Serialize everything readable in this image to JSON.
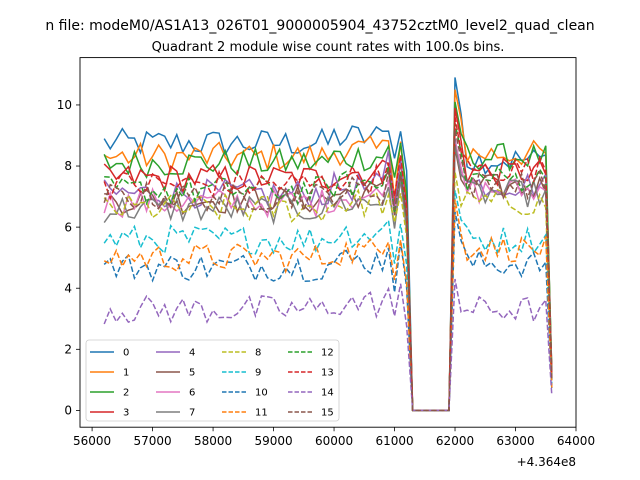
{
  "figure": {
    "suptitle": "n file: modeM0/AS1A13_026T01_9000005904_43752cztM0_level2_quad_clean"
  },
  "chart_data": {
    "type": "line",
    "title": "Quadrant 2 module wise count rates with 100.0s bins.",
    "xlabel": "",
    "ylabel": "",
    "xlim": [
      55800,
      64000
    ],
    "ylim": [
      -0.55,
      11.55
    ],
    "x_offset_label": "+4.364e8",
    "xticks": [
      56000,
      57000,
      58000,
      59000,
      60000,
      61000,
      62000,
      63000,
      64000
    ],
    "xtick_labels": [
      "56000",
      "57000",
      "58000",
      "59000",
      "60000",
      "61000",
      "62000",
      "63000",
      "64000"
    ],
    "yticks": [
      0,
      2,
      4,
      6,
      8,
      10
    ],
    "ytick_labels": [
      "0",
      "2",
      "4",
      "6",
      "8",
      "10"
    ],
    "grid": false,
    "legend": {
      "placement": "lower-left",
      "columns": 4
    },
    "x": [
      56200,
      56300,
      56400,
      56500,
      56600,
      56700,
      56800,
      56900,
      57000,
      57100,
      57200,
      57300,
      57400,
      57500,
      57600,
      57700,
      57800,
      57900,
      58000,
      58100,
      58200,
      58300,
      58400,
      58500,
      58600,
      58700,
      58800,
      58900,
      59000,
      59100,
      59200,
      59300,
      59400,
      59500,
      59600,
      59700,
      59800,
      59900,
      60000,
      60100,
      60200,
      60300,
      60400,
      60500,
      60600,
      60700,
      60800,
      60900,
      61000,
      61100,
      61200,
      61300,
      61400,
      61500,
      61600,
      61700,
      61800,
      61900,
      62000,
      62100,
      62200,
      62300,
      62400,
      62500,
      62600,
      62700,
      62800,
      62900,
      63000,
      63100,
      63200,
      63300,
      63400,
      63500,
      63600
    ],
    "gap_values": [
      0,
      0,
      0,
      0,
      0,
      0
    ],
    "series": [
      {
        "name": "0",
        "color": "#1f77b4",
        "dash": false,
        "base": 8.75,
        "dip": 8.2,
        "p1": 9.3,
        "peak": 10.9,
        "post": 8.2
      },
      {
        "name": "1",
        "color": "#ff7f0e",
        "dash": false,
        "base": 8.3,
        "dip": 7.2,
        "p1": 8.9,
        "peak": 10.5,
        "post": 8.4
      },
      {
        "name": "2",
        "color": "#2ca02c",
        "dash": false,
        "base": 8.1,
        "dip": 7.5,
        "p1": 8.7,
        "peak": 10.1,
        "post": 8.3
      },
      {
        "name": "3",
        "color": "#d62728",
        "dash": false,
        "base": 7.6,
        "dip": 7.0,
        "p1": 8.2,
        "peak": 9.9,
        "post": 7.8
      },
      {
        "name": "4",
        "color": "#9467bd",
        "dash": false,
        "base": 7.1,
        "dip": 6.6,
        "p1": 8.4,
        "peak": 8.9,
        "post": 7.4
      },
      {
        "name": "5",
        "color": "#8c564b",
        "dash": false,
        "base": 6.9,
        "dip": 6.4,
        "p1": 7.9,
        "peak": 8.6,
        "post": 7.3
      },
      {
        "name": "6",
        "color": "#e377c2",
        "dash": false,
        "base": 6.8,
        "dip": 6.3,
        "p1": 7.7,
        "peak": 8.8,
        "post": 7.2
      },
      {
        "name": "7",
        "color": "#7f7f7f",
        "dash": false,
        "base": 6.6,
        "dip": 6.1,
        "p1": 7.4,
        "peak": 8.7,
        "post": 7.1
      },
      {
        "name": "8",
        "color": "#bcbd22",
        "dash": true,
        "base": 6.6,
        "dip": 5.9,
        "p1": 7.0,
        "peak": 7.8,
        "post": 6.8
      },
      {
        "name": "9",
        "color": "#17becf",
        "dash": true,
        "base": 5.6,
        "dip": 5.0,
        "p1": 6.2,
        "peak": 7.2,
        "post": 5.6
      },
      {
        "name": "10",
        "color": "#1f77b4",
        "dash": true,
        "base": 4.7,
        "dip": 4.1,
        "p1": 5.4,
        "peak": 6.5,
        "post": 4.8
      },
      {
        "name": "11",
        "color": "#ff7f0e",
        "dash": true,
        "base": 5.0,
        "dip": 4.5,
        "p1": 5.7,
        "peak": 6.9,
        "post": 5.3
      },
      {
        "name": "12",
        "color": "#2ca02c",
        "dash": true,
        "base": 7.2,
        "dip": 6.7,
        "p1": 8.0,
        "peak": 9.4,
        "post": 7.6
      },
      {
        "name": "13",
        "color": "#d62728",
        "dash": true,
        "base": 7.4,
        "dip": 6.8,
        "p1": 8.3,
        "peak": 9.6,
        "post": 7.9
      },
      {
        "name": "14",
        "color": "#9467bd",
        "dash": true,
        "base": 3.3,
        "dip": 2.9,
        "p1": 4.0,
        "peak": 4.3,
        "post": 3.3
      },
      {
        "name": "15",
        "color": "#8c564b",
        "dash": true,
        "base": 7.0,
        "dip": 6.5,
        "p1": 7.8,
        "peak": 9.2,
        "post": 7.4
      }
    ]
  }
}
